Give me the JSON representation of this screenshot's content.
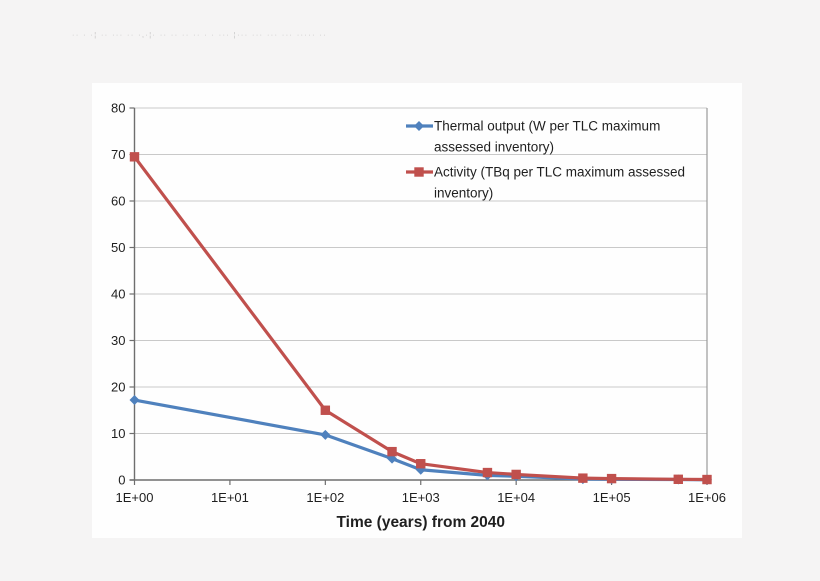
{
  "watermark": {
    "text": "·· ·  ·¦ ··  ··· ·· ·,·¦· ·· ··  ·· ··  · ·  ··· ¦··· ···   ··· ···   ·····  ··"
  },
  "chart_data": {
    "type": "line",
    "title": "",
    "xlabel": "Time (years) from 2040",
    "ylabel": "",
    "x_scale": "log",
    "x_range": [
      1,
      1000000
    ],
    "x_tick_labels": [
      "1E+00",
      "1E+01",
      "1E+02",
      "1E+03",
      "1E+04",
      "1E+05",
      "1E+06"
    ],
    "x_tick_values": [
      1,
      10,
      100,
      1000,
      10000,
      100000,
      1000000
    ],
    "y_ticks": [
      0,
      10,
      20,
      30,
      40,
      50,
      60,
      70,
      80
    ],
    "ylim": [
      0,
      80
    ],
    "grid": "horizontal",
    "legend_position": "top-right-inside",
    "x": [
      1,
      100,
      500,
      1000,
      5000,
      10000,
      50000,
      100000,
      500000,
      1000000
    ],
    "series": [
      {
        "name": "Thermal output (W per TLC maximum assessed inventory)",
        "legend_lines": [
          "Thermal output (W per TLC maximum",
          "assessed inventory)"
        ],
        "color": "#4F81BD",
        "marker": "diamond",
        "values": [
          17.2,
          9.7,
          4.6,
          2.2,
          1.0,
          0.8,
          0.2,
          0.15,
          0.1,
          0.05
        ]
      },
      {
        "name": "Activity (TBq per TLC maximum assessed inventory)",
        "legend_lines": [
          "Activity (TBq per TLC maximum assessed",
          "inventory)"
        ],
        "color": "#C0504D",
        "marker": "square",
        "values": [
          69.5,
          15.0,
          6.1,
          3.5,
          1.6,
          1.2,
          0.4,
          0.3,
          0.15,
          0.1
        ]
      }
    ],
    "colors": {
      "gridline": "#c9c9c9",
      "plot_border": "#9a9a9a",
      "axis": "#6e6e6e",
      "text": "#1f1f1f",
      "chart_bg": "#fefefe",
      "page_bg": "#f5f4f4"
    }
  }
}
